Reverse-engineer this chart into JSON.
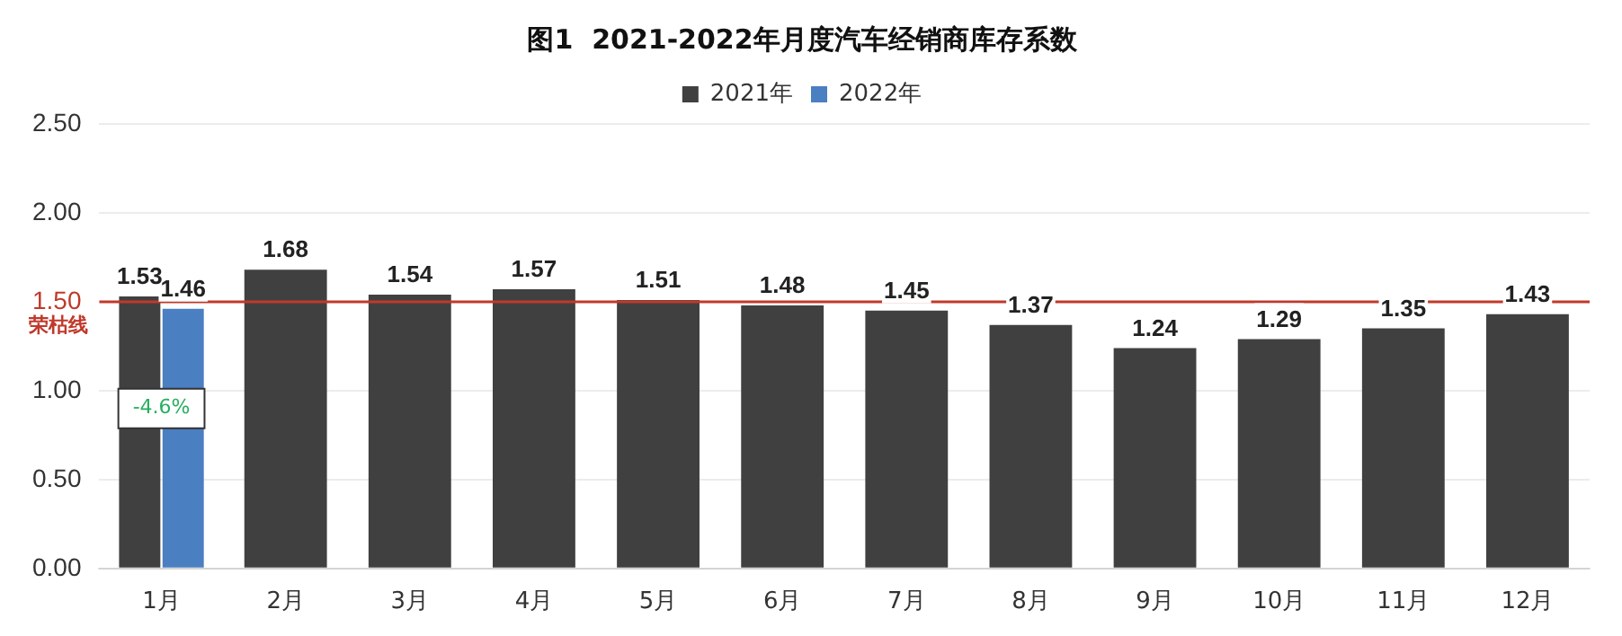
{
  "chart_data": {
    "type": "bar",
    "title": "图1  2021-2022年月度汽车经销商库存系数",
    "categories": [
      "1月",
      "2月",
      "3月",
      "4月",
      "5月",
      "6月",
      "7月",
      "8月",
      "9月",
      "10月",
      "11月",
      "12月"
    ],
    "series": [
      {
        "name": "2021年",
        "color": "#404040",
        "values": [
          1.53,
          1.68,
          1.54,
          1.57,
          1.51,
          1.48,
          1.45,
          1.37,
          1.24,
          1.29,
          1.35,
          1.43
        ]
      },
      {
        "name": "2022年",
        "color": "#4a7fc1",
        "values": [
          1.46,
          null,
          null,
          null,
          null,
          null,
          null,
          null,
          null,
          null,
          null,
          null
        ]
      }
    ],
    "ylim": [
      0,
      2.5
    ],
    "yticks": [
      "0.00",
      "0.50",
      "1.00",
      "1.50",
      "2.00",
      "2.50"
    ],
    "ref_lines": [
      {
        "axis": "y",
        "value": 1.5,
        "label": "荣枯线",
        "color": "#c0392b"
      }
    ],
    "annotations": [
      {
        "text": "-4.6%",
        "x": "1月",
        "y": 0.9
      }
    ],
    "data_labels": true,
    "grid": "y",
    "legend": "top"
  }
}
